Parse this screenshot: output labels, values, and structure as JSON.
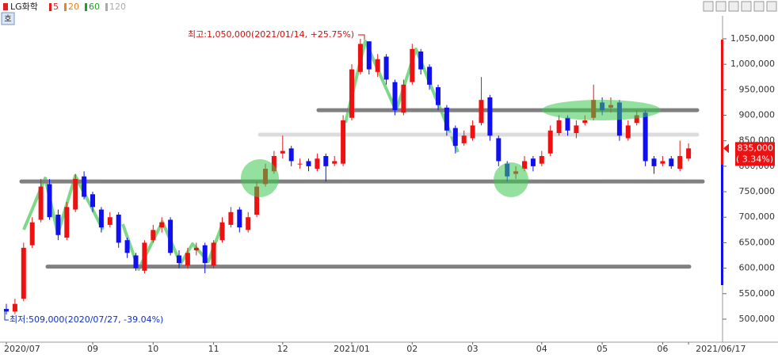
{
  "chart_data": {
    "type": "candlestick",
    "toolbar": {
      "symbol": "LG화학",
      "button": "호",
      "moving_averages": [
        {
          "name": "5",
          "color": "#e02020"
        },
        {
          "name": "20",
          "color": "#f08020"
        },
        {
          "name": "60",
          "color": "#20a020"
        },
        {
          "name": "120",
          "color": "#aaaaaa"
        }
      ]
    },
    "categories": [
      "2020/07",
      null,
      null,
      null,
      null,
      null,
      null,
      null,
      null,
      null,
      "09",
      null,
      null,
      null,
      null,
      null,
      null,
      "10",
      null,
      null,
      null,
      null,
      null,
      null,
      "11",
      null,
      null,
      null,
      null,
      null,
      null,
      null,
      "12",
      null,
      null,
      null,
      null,
      null,
      null,
      null,
      "2021/01",
      null,
      null,
      null,
      null,
      null,
      null,
      "02",
      null,
      null,
      null,
      null,
      null,
      null,
      "03",
      null,
      null,
      null,
      null,
      null,
      null,
      null,
      "04",
      null,
      null,
      null,
      null,
      null,
      null,
      "05",
      null,
      null,
      null,
      null,
      null,
      null,
      "06",
      null,
      null,
      "2021/06/17"
    ],
    "open": [
      520000,
      515000,
      540000,
      645000,
      695000,
      765000,
      705000,
      660000,
      715000,
      780000,
      745000,
      715000,
      685000,
      705000,
      655000,
      625000,
      595000,
      655000,
      680000,
      695000,
      625000,
      605000,
      635000,
      645000,
      605000,
      655000,
      685000,
      715000,
      675000,
      705000,
      765000,
      790000,
      825000,
      835000,
      805000,
      810000,
      795000,
      820000,
      805000,
      805000,
      895000,
      985000,
      1045000,
      985000,
      1015000,
      965000,
      905000,
      965000,
      1025000,
      995000,
      955000,
      915000,
      875000,
      845000,
      855000,
      885000,
      935000,
      855000,
      805000,
      785000,
      795000,
      815000,
      805000,
      825000,
      865000,
      895000,
      865000,
      885000,
      895000,
      925000,
      915000,
      925000,
      855000,
      885000,
      905000,
      815000,
      805000,
      815000,
      795000,
      815000
    ],
    "high": [
      530000,
      540000,
      650000,
      700000,
      775000,
      775000,
      715000,
      730000,
      785000,
      790000,
      750000,
      720000,
      710000,
      710000,
      660000,
      630000,
      655000,
      685000,
      700000,
      700000,
      635000,
      640000,
      650000,
      650000,
      655000,
      700000,
      720000,
      720000,
      710000,
      770000,
      805000,
      830000,
      860000,
      840000,
      815000,
      815000,
      825000,
      825000,
      820000,
      900000,
      1000000,
      1050000,
      1045000,
      1020000,
      1020000,
      970000,
      970000,
      1040000,
      1030000,
      1000000,
      960000,
      920000,
      880000,
      870000,
      890000,
      975000,
      940000,
      860000,
      810000,
      800000,
      820000,
      820000,
      830000,
      880000,
      900000,
      900000,
      890000,
      900000,
      960000,
      935000,
      935000,
      930000,
      890000,
      910000,
      910000,
      820000,
      820000,
      820000,
      850000,
      845000
    ],
    "low": [
      509000,
      510000,
      535000,
      640000,
      690000,
      695000,
      655000,
      655000,
      710000,
      735000,
      710000,
      670000,
      680000,
      640000,
      620000,
      595000,
      590000,
      650000,
      670000,
      625000,
      600000,
      600000,
      625000,
      590000,
      600000,
      650000,
      680000,
      670000,
      670000,
      700000,
      760000,
      785000,
      815000,
      800000,
      795000,
      790000,
      790000,
      770000,
      800000,
      800000,
      890000,
      980000,
      980000,
      975000,
      960000,
      900000,
      900000,
      960000,
      980000,
      950000,
      910000,
      860000,
      825000,
      840000,
      850000,
      880000,
      850000,
      800000,
      770000,
      775000,
      790000,
      790000,
      800000,
      820000,
      860000,
      860000,
      855000,
      880000,
      890000,
      900000,
      905000,
      850000,
      850000,
      880000,
      800000,
      785000,
      800000,
      795000,
      790000,
      810000
    ],
    "close": [
      515000,
      530000,
      640000,
      690000,
      760000,
      700000,
      665000,
      720000,
      775000,
      740000,
      720000,
      680000,
      700000,
      650000,
      630000,
      600000,
      650000,
      675000,
      690000,
      630000,
      610000,
      630000,
      640000,
      610000,
      650000,
      690000,
      710000,
      680000,
      700000,
      760000,
      795000,
      820000,
      830000,
      810000,
      805000,
      800000,
      815000,
      800000,
      810000,
      890000,
      990000,
      1040000,
      990000,
      1010000,
      970000,
      910000,
      960000,
      1030000,
      990000,
      960000,
      920000,
      870000,
      840000,
      860000,
      880000,
      930000,
      860000,
      810000,
      780000,
      790000,
      810000,
      800000,
      820000,
      870000,
      890000,
      870000,
      880000,
      890000,
      930000,
      910000,
      920000,
      860000,
      880000,
      900000,
      810000,
      800000,
      810000,
      800000,
      820000,
      835000
    ],
    "up_color": "#ee1111",
    "down_color": "#1010ee",
    "ylim": [
      458000,
      1095000
    ],
    "yticks": [
      {
        "value": 500000,
        "label": "500,000"
      },
      {
        "value": 550000,
        "label": "550,000"
      },
      {
        "value": 600000,
        "label": "600,000"
      },
      {
        "value": 650000,
        "label": "650,000"
      },
      {
        "value": 700000,
        "label": "700,000"
      },
      {
        "value": 750000,
        "label": "750,000"
      },
      {
        "value": 800000,
        "label": "800,000"
      },
      {
        "value": 850000,
        "label": "850,000"
      },
      {
        "value": 900000,
        "label": "900,000"
      },
      {
        "value": 950000,
        "label": "950,000"
      },
      {
        "value": 1000000,
        "label": "1,000,000"
      },
      {
        "value": 1050000,
        "label": "1,050,000"
      }
    ],
    "grid": false,
    "reference_lines": [
      {
        "value": 910000,
        "color": "#808080"
      },
      {
        "value": 862000,
        "color": "#dcdcdc"
      },
      {
        "value": 770000,
        "color": "#808080"
      },
      {
        "value": 603000,
        "color": "#808080"
      }
    ],
    "last_price": {
      "value": 835000,
      "label": "835,000",
      "change": "( 3.34%)"
    },
    "annotations": {
      "high": "최고:1,050,000(2021/01/14, +25.75%)",
      "low": "최저:509,000(2020/07/27, -39.04%)"
    }
  }
}
